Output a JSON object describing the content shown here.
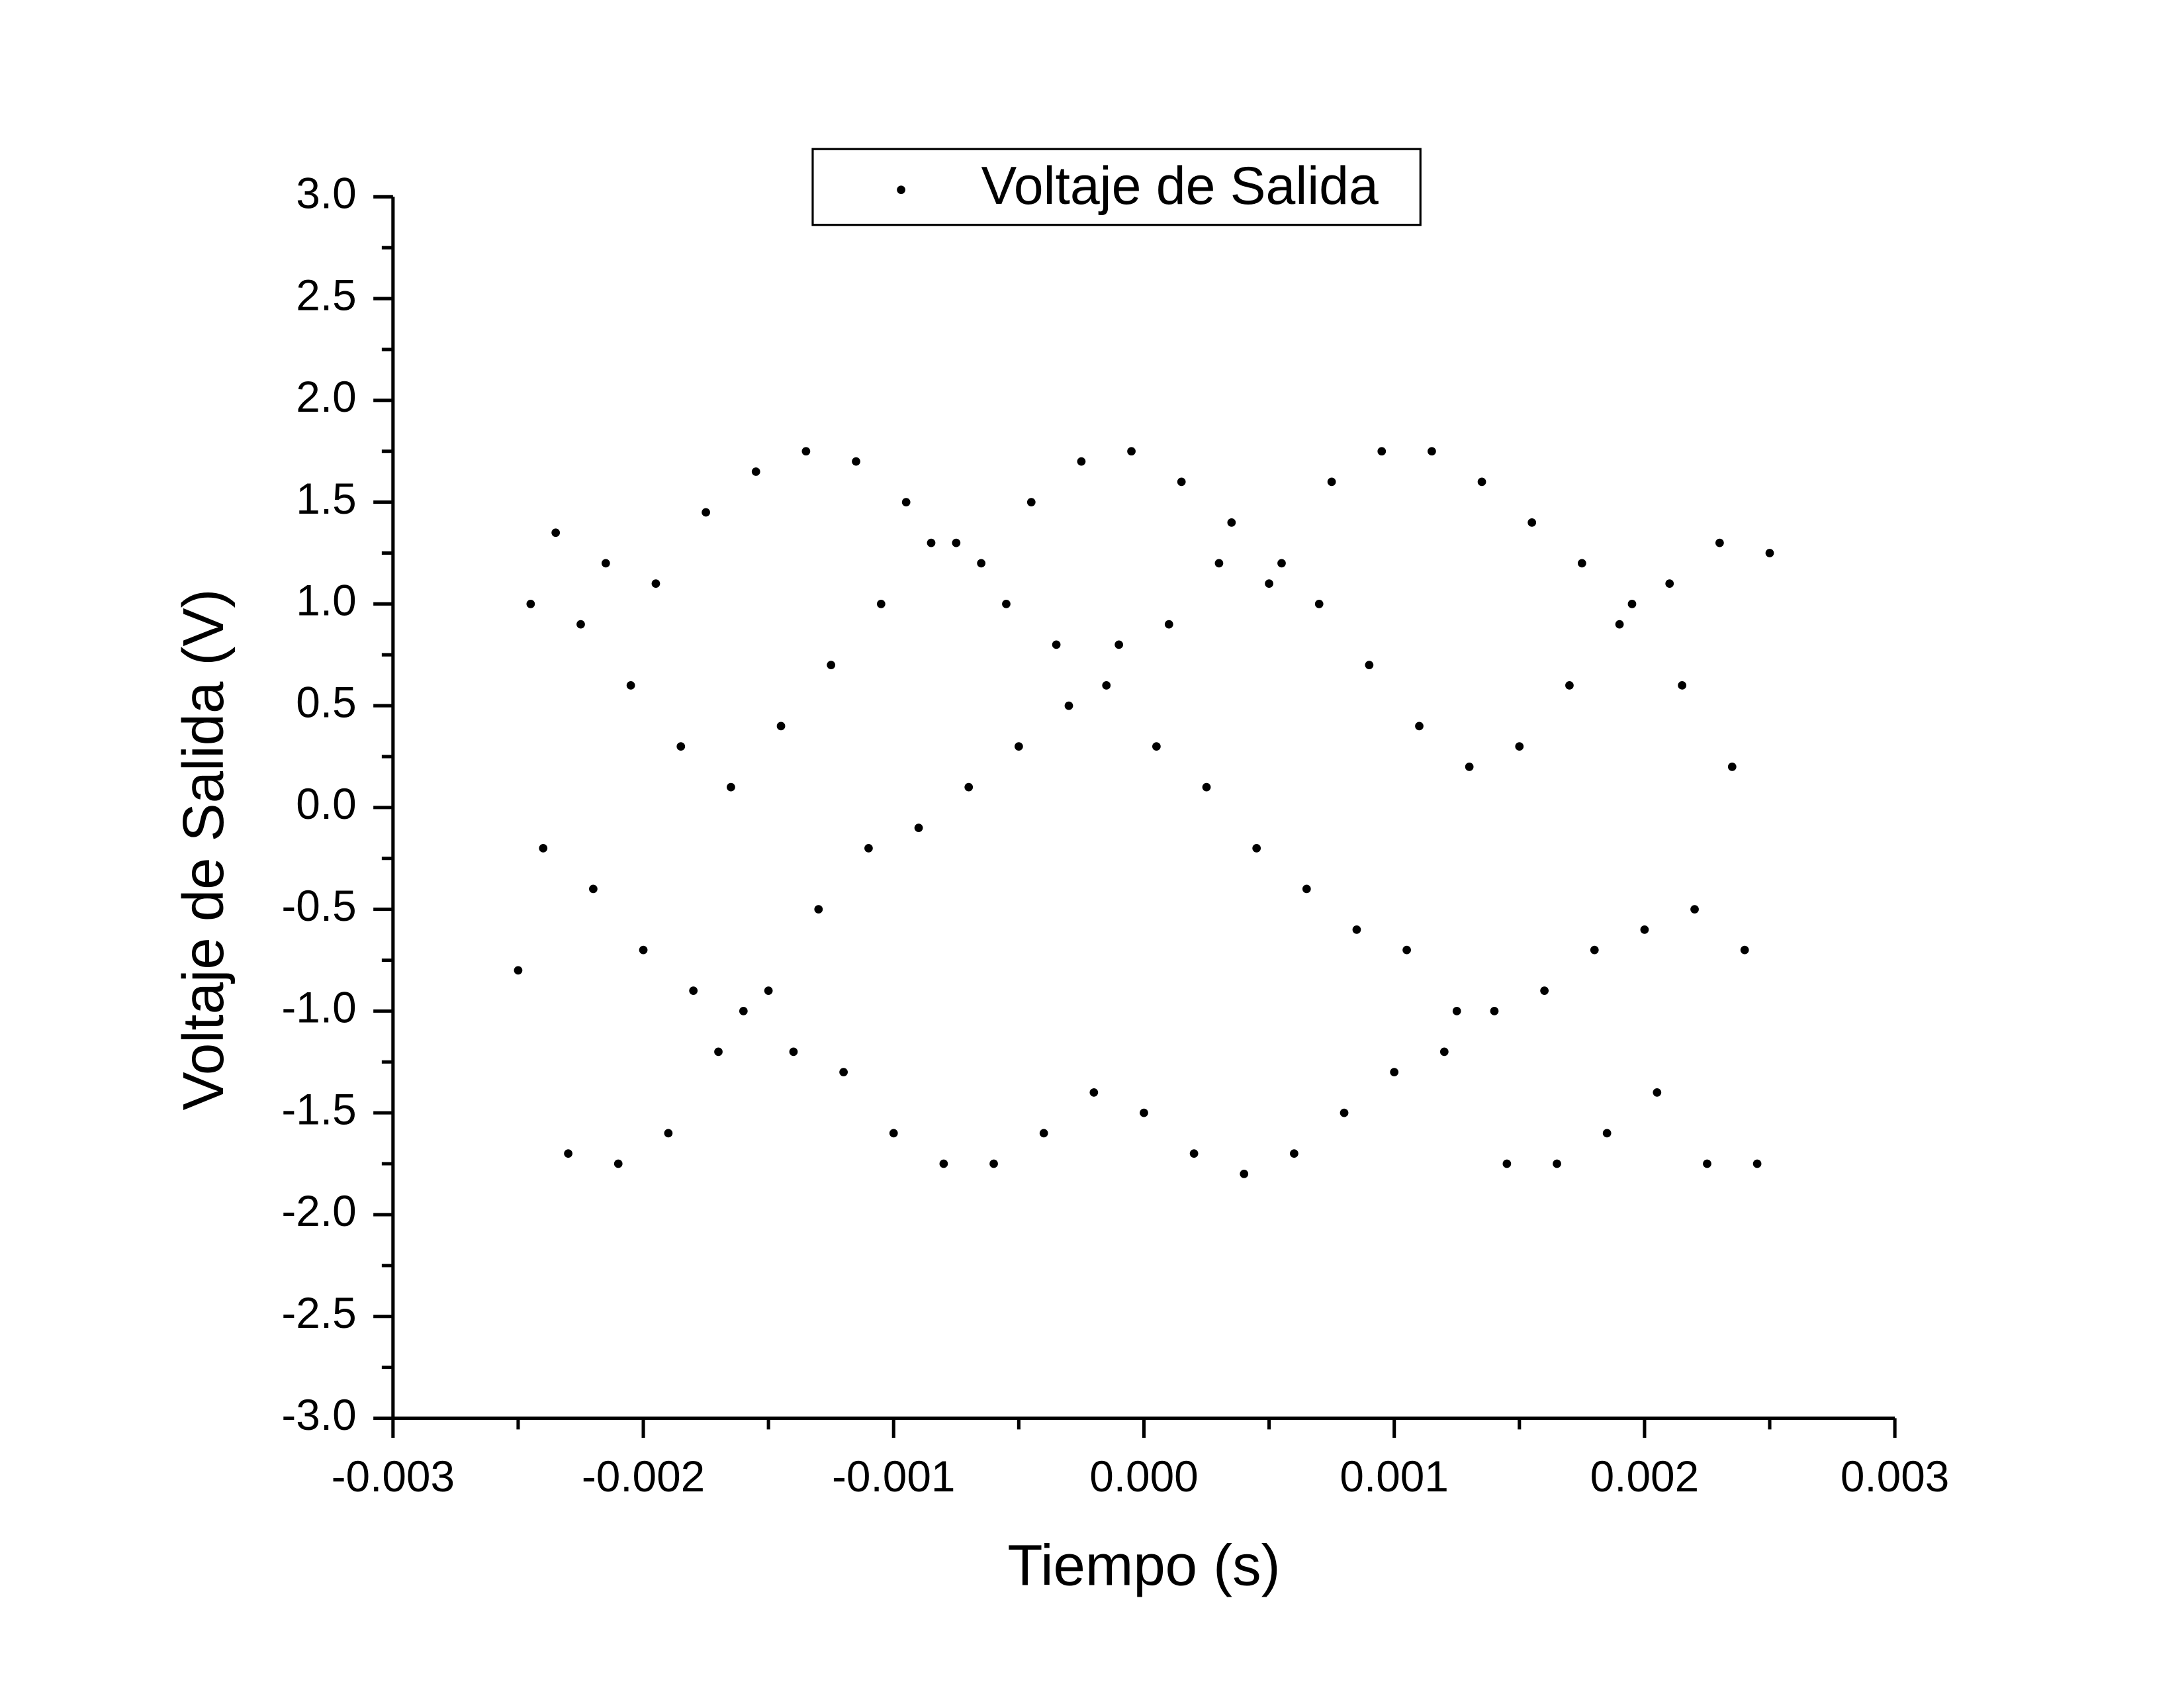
{
  "chart_data": {
    "type": "scatter",
    "x_label": "Tiempo (s)",
    "y_label": "Voltaje de Salida (V)",
    "x": [
      -0.0025,
      -0.00245,
      -0.0024,
      -0.00235,
      -0.0023,
      -0.00225,
      -0.0022,
      -0.00215,
      -0.0021,
      -0.00205,
      -0.002,
      -0.00195,
      -0.0019,
      -0.00185,
      -0.0018,
      -0.00175,
      -0.0017,
      -0.00165,
      -0.0016,
      -0.00155,
      -0.0015,
      -0.00145,
      -0.0014,
      -0.00135,
      -0.0013,
      -0.00125,
      -0.0012,
      -0.00115,
      -0.0011,
      -0.00105,
      -0.001,
      -0.00095,
      -0.0009,
      -0.00085,
      -0.0008,
      -0.00075,
      -0.0007,
      -0.00065,
      -0.0006,
      -0.00055,
      -0.0005,
      -0.00045,
      -0.0004,
      -0.00035,
      -0.0003,
      -0.00025,
      -0.0002,
      -0.00015,
      -0.0001,
      -5e-05,
      0,
      5e-05,
      0.0001,
      0.00015,
      0.0002,
      0.00025,
      0.0003,
      0.00035,
      0.0004,
      0.00045,
      0.0005,
      0.00055,
      0.0006,
      0.00065,
      0.0007,
      0.00075,
      0.0008,
      0.00085,
      0.0009,
      0.00095,
      0.001,
      0.00105,
      0.0011,
      0.00115,
      0.0012,
      0.00125,
      0.0013,
      0.00135,
      0.0014,
      0.00145,
      0.0015,
      0.00155,
      0.0016,
      0.00165,
      0.0017,
      0.00175,
      0.0018,
      0.00185,
      0.0019,
      0.00195,
      0.002,
      0.00205,
      0.0021,
      0.00215,
      0.0022,
      0.00225,
      0.0023,
      0.00235,
      0.0024,
      0.00245,
      0.0025
    ],
    "series": [
      {
        "name": "Voltaje de Salida",
        "color": "#000000",
        "values": [
          -0.8,
          1.0,
          -0.2,
          1.35,
          -1.7,
          0.9,
          -0.4,
          1.2,
          -1.75,
          0.6,
          -0.7,
          1.1,
          -1.6,
          0.3,
          -0.9,
          1.45,
          -1.2,
          0.1,
          -1.0,
          1.65,
          -0.9,
          0.4,
          -1.2,
          1.75,
          -0.5,
          0.7,
          -1.3,
          1.7,
          -0.2,
          1.0,
          -1.6,
          1.5,
          -0.1,
          1.3,
          -1.75,
          1.3,
          0.1,
          1.2,
          -1.75,
          1.0,
          0.3,
          1.5,
          -1.6,
          0.8,
          0.5,
          1.7,
          -1.4,
          0.6,
          0.8,
          1.75,
          -1.5,
          0.3,
          0.9,
          1.6,
          -1.7,
          0.1,
          1.2,
          1.4,
          -1.8,
          -0.2,
          1.1,
          1.2,
          -1.7,
          -0.4,
          1.0,
          1.6,
          -1.5,
          -0.6,
          0.7,
          1.75,
          -1.3,
          -0.7,
          0.4,
          1.75,
          -1.2,
          -1.0,
          0.2,
          1.6,
          -1.0,
          -1.75,
          0.3,
          1.4,
          -0.9,
          -1.75,
          0.6,
          1.2,
          -0.7,
          -1.6,
          0.9,
          1.0,
          -0.6,
          -1.4,
          1.1,
          0.6,
          -0.5,
          -1.75,
          1.3,
          0.2,
          -0.7,
          -1.75,
          1.25
        ]
      }
    ],
    "xlim": [
      -0.003,
      0.003
    ],
    "xticks": [
      -0.003,
      -0.002,
      -0.001,
      {
        "value": 0,
        "label": "0.000"
      },
      0.001,
      0.002,
      0.003
    ],
    "ylim": [
      -3,
      3
    ],
    "yticks": [
      {
        "value": -3,
        "label": "-3.0"
      },
      -2.5,
      {
        "value": -2,
        "label": "-2.0"
      },
      -1.5,
      {
        "value": -1,
        "label": "-1.0"
      },
      -0.5,
      {
        "value": 0,
        "label": "0.0"
      },
      0.5,
      {
        "value": 1,
        "label": "1.0"
      },
      1.5,
      {
        "value": 2,
        "label": "2.0"
      },
      2.5,
      {
        "value": 3,
        "label": "3.0"
      }
    ],
    "grid": false,
    "legend": "top"
  }
}
